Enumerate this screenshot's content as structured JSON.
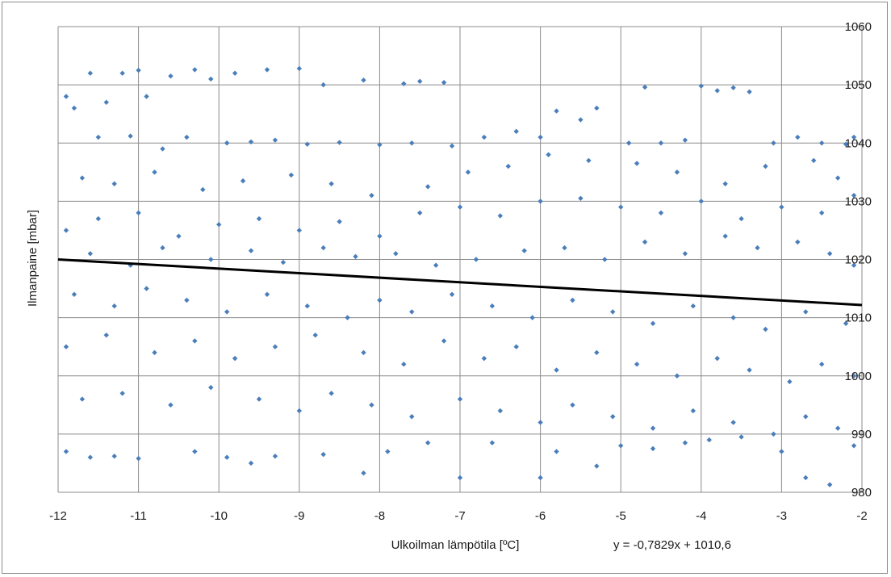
{
  "chart_data": {
    "type": "scatter",
    "title": "",
    "xlabel": "Ulkoilman lämpötila [ºC]",
    "ylabel": "Ilmanpaine [mbar]",
    "xlim": [
      -12,
      -2
    ],
    "ylim": [
      980,
      1060
    ],
    "x_ticks": [
      -12,
      -11,
      -10,
      -9,
      -8,
      -7,
      -6,
      -5,
      -4,
      -3,
      -2
    ],
    "x_tick_labels": [
      "-12",
      "-11",
      "-10",
      "-9",
      "-8",
      "-7",
      "-6",
      "-5",
      "-4",
      "-3",
      "-2"
    ],
    "y_ticks": [
      980,
      990,
      1000,
      1010,
      1020,
      1030,
      1040,
      1050,
      1060
    ],
    "y_tick_labels": [
      "980",
      "990",
      "1000",
      "1010",
      "1020",
      "1030",
      "1040",
      "1050",
      "1060"
    ],
    "y_axis_side": "right",
    "grid": true,
    "legend": "none",
    "marker_color": "#4a7ebb",
    "trendline_color": "#000000",
    "series": [
      {
        "marker": "diamond",
        "points": [
          [
            -11.9,
            1048
          ],
          [
            -11.6,
            1052
          ],
          [
            -11.2,
            1052
          ],
          [
            -11.0,
            1052.5
          ],
          [
            -10.6,
            1051.5
          ],
          [
            -10.3,
            1052.6
          ],
          [
            -10.1,
            1051
          ],
          [
            -9.8,
            1052
          ],
          [
            -9.4,
            1052.6
          ],
          [
            -9.0,
            1052.8
          ],
          [
            -8.7,
            1050
          ],
          [
            -8.2,
            1050.8
          ],
          [
            -7.7,
            1050.2
          ],
          [
            -7.5,
            1050.6
          ],
          [
            -7.2,
            1050.4
          ],
          [
            -11.8,
            1046
          ],
          [
            -11.4,
            1047
          ],
          [
            -10.9,
            1048
          ],
          [
            -11.5,
            1041
          ],
          [
            -11.1,
            1041.2
          ],
          [
            -10.7,
            1039
          ],
          [
            -10.4,
            1041
          ],
          [
            -9.9,
            1040
          ],
          [
            -9.6,
            1040.2
          ],
          [
            -9.3,
            1040.5
          ],
          [
            -8.9,
            1039.8
          ],
          [
            -8.5,
            1040.1
          ],
          [
            -8.0,
            1039.7
          ],
          [
            -7.6,
            1040
          ],
          [
            -7.1,
            1039.5
          ],
          [
            -6.7,
            1041
          ],
          [
            -6.3,
            1042
          ],
          [
            -6.0,
            1041
          ],
          [
            -5.8,
            1045.5
          ],
          [
            -5.5,
            1044
          ],
          [
            -5.3,
            1046
          ],
          [
            -4.9,
            1040
          ],
          [
            -4.7,
            1049.6
          ],
          [
            -4.5,
            1040
          ],
          [
            -4.2,
            1040.5
          ],
          [
            -4.0,
            1049.8
          ],
          [
            -3.8,
            1049
          ],
          [
            -3.6,
            1049.5
          ],
          [
            -3.4,
            1048.8
          ],
          [
            -3.1,
            1040
          ],
          [
            -2.8,
            1041
          ],
          [
            -2.5,
            1040
          ],
          [
            -2.2,
            1039.8
          ],
          [
            -2.1,
            1041
          ],
          [
            -11.7,
            1034
          ],
          [
            -11.3,
            1033
          ],
          [
            -10.8,
            1035
          ],
          [
            -10.2,
            1032
          ],
          [
            -9.7,
            1033.5
          ],
          [
            -9.1,
            1034.5
          ],
          [
            -8.6,
            1033
          ],
          [
            -8.1,
            1031
          ],
          [
            -7.4,
            1032.5
          ],
          [
            -6.9,
            1035
          ],
          [
            -6.4,
            1036
          ],
          [
            -5.9,
            1038
          ],
          [
            -5.4,
            1037
          ],
          [
            -4.8,
            1036.5
          ],
          [
            -4.3,
            1035
          ],
          [
            -3.7,
            1033
          ],
          [
            -3.2,
            1036
          ],
          [
            -2.6,
            1037
          ],
          [
            -2.3,
            1034
          ],
          [
            -11.9,
            1025
          ],
          [
            -11.5,
            1027
          ],
          [
            -11.0,
            1028
          ],
          [
            -10.5,
            1024
          ],
          [
            -10.0,
            1026
          ],
          [
            -9.5,
            1027
          ],
          [
            -9.0,
            1025
          ],
          [
            -8.5,
            1026.5
          ],
          [
            -8.0,
            1024
          ],
          [
            -7.5,
            1028
          ],
          [
            -7.0,
            1029
          ],
          [
            -6.5,
            1027.5
          ],
          [
            -6.0,
            1030
          ],
          [
            -5.5,
            1030.5
          ],
          [
            -5.0,
            1029
          ],
          [
            -4.5,
            1028
          ],
          [
            -4.0,
            1030
          ],
          [
            -3.5,
            1027
          ],
          [
            -3.0,
            1029
          ],
          [
            -2.5,
            1028
          ],
          [
            -2.1,
            1031
          ],
          [
            -11.6,
            1021
          ],
          [
            -11.1,
            1019
          ],
          [
            -10.7,
            1022
          ],
          [
            -10.1,
            1020
          ],
          [
            -9.6,
            1021.5
          ],
          [
            -9.2,
            1019.5
          ],
          [
            -8.7,
            1022
          ],
          [
            -8.3,
            1020.5
          ],
          [
            -7.8,
            1021
          ],
          [
            -7.3,
            1019
          ],
          [
            -6.8,
            1020
          ],
          [
            -6.2,
            1021.5
          ],
          [
            -5.7,
            1022
          ],
          [
            -5.2,
            1020
          ],
          [
            -4.7,
            1023
          ],
          [
            -4.2,
            1021
          ],
          [
            -3.7,
            1024
          ],
          [
            -3.3,
            1022
          ],
          [
            -2.8,
            1023
          ],
          [
            -2.4,
            1021
          ],
          [
            -2.1,
            1019
          ],
          [
            -11.8,
            1014
          ],
          [
            -11.3,
            1012
          ],
          [
            -10.9,
            1015
          ],
          [
            -10.4,
            1013
          ],
          [
            -9.9,
            1011
          ],
          [
            -9.4,
            1014
          ],
          [
            -8.9,
            1012
          ],
          [
            -8.4,
            1010
          ],
          [
            -8.0,
            1013
          ],
          [
            -7.6,
            1011
          ],
          [
            -7.1,
            1014
          ],
          [
            -6.6,
            1012
          ],
          [
            -6.1,
            1010
          ],
          [
            -5.6,
            1013
          ],
          [
            -5.1,
            1011
          ],
          [
            -4.6,
            1009
          ],
          [
            -4.1,
            1012
          ],
          [
            -3.6,
            1010
          ],
          [
            -3.2,
            1008
          ],
          [
            -2.7,
            1011
          ],
          [
            -2.2,
            1009
          ],
          [
            -11.9,
            1005
          ],
          [
            -11.4,
            1007
          ],
          [
            -10.8,
            1004
          ],
          [
            -10.3,
            1006
          ],
          [
            -9.8,
            1003
          ],
          [
            -9.3,
            1005
          ],
          [
            -8.8,
            1007
          ],
          [
            -8.2,
            1004
          ],
          [
            -7.7,
            1002
          ],
          [
            -7.2,
            1006
          ],
          [
            -6.7,
            1003
          ],
          [
            -6.3,
            1005
          ],
          [
            -5.8,
            1001
          ],
          [
            -5.3,
            1004
          ],
          [
            -4.8,
            1002
          ],
          [
            -4.3,
            1000
          ],
          [
            -3.8,
            1003
          ],
          [
            -3.4,
            1001
          ],
          [
            -2.9,
            999
          ],
          [
            -2.5,
            1002
          ],
          [
            -2.1,
            1000
          ],
          [
            -11.7,
            996
          ],
          [
            -11.2,
            997
          ],
          [
            -10.6,
            995
          ],
          [
            -10.1,
            998
          ],
          [
            -9.5,
            996
          ],
          [
            -9.0,
            994
          ],
          [
            -8.6,
            997
          ],
          [
            -8.1,
            995
          ],
          [
            -7.6,
            993
          ],
          [
            -7.0,
            996
          ],
          [
            -6.5,
            994
          ],
          [
            -6.0,
            992
          ],
          [
            -5.6,
            995
          ],
          [
            -5.1,
            993
          ],
          [
            -4.6,
            991
          ],
          [
            -4.1,
            994
          ],
          [
            -3.6,
            992
          ],
          [
            -3.1,
            990
          ],
          [
            -2.7,
            993
          ],
          [
            -2.3,
            991
          ],
          [
            -11.9,
            987
          ],
          [
            -11.6,
            986
          ],
          [
            -11.3,
            986.2
          ],
          [
            -11.0,
            985.8
          ],
          [
            -10.3,
            987
          ],
          [
            -9.9,
            986
          ],
          [
            -9.6,
            985
          ],
          [
            -9.3,
            986.2
          ],
          [
            -8.7,
            986.5
          ],
          [
            -8.2,
            983.3
          ],
          [
            -7.9,
            987
          ],
          [
            -7.4,
            988.5
          ],
          [
            -7.0,
            982.5
          ],
          [
            -6.6,
            988.5
          ],
          [
            -6.0,
            982.5
          ],
          [
            -5.8,
            987
          ],
          [
            -5.3,
            984.5
          ],
          [
            -5.0,
            988
          ],
          [
            -4.6,
            987.5
          ],
          [
            -4.2,
            988.5
          ],
          [
            -3.9,
            989
          ],
          [
            -3.5,
            989.5
          ],
          [
            -3.0,
            987
          ],
          [
            -2.7,
            982.5
          ],
          [
            -2.4,
            981.3
          ],
          [
            -2.1,
            988
          ]
        ]
      }
    ],
    "trendline": {
      "slope": -0.7829,
      "intercept": 1010.6,
      "equation_label": "y = -0,7829x + 1010,6"
    }
  }
}
